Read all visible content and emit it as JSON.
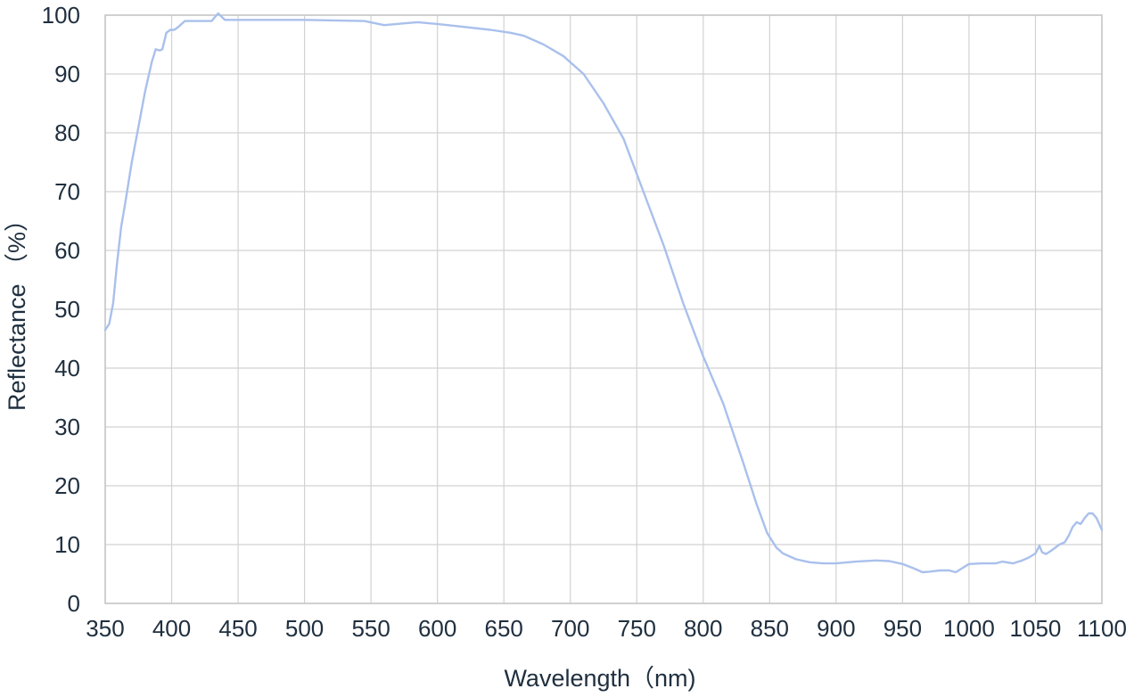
{
  "chart_data": {
    "type": "line",
    "xlabel": "Wavelength（nm)",
    "ylabel": "Reflectance （%）",
    "xlim": [
      350,
      1100
    ],
    "ylim": [
      0,
      100
    ],
    "x_ticks": [
      350,
      400,
      450,
      500,
      550,
      600,
      650,
      700,
      750,
      800,
      850,
      900,
      950,
      1000,
      1050,
      1100
    ],
    "y_ticks": [
      0,
      10,
      20,
      30,
      40,
      50,
      60,
      70,
      80,
      90,
      100
    ],
    "grid": true,
    "series": [
      {
        "color": "#a9c0ec",
        "points": [
          [
            350,
            46.5
          ],
          [
            353,
            47.5
          ],
          [
            356,
            51
          ],
          [
            359,
            58
          ],
          [
            362,
            64
          ],
          [
            365,
            68
          ],
          [
            370,
            75
          ],
          [
            375,
            81
          ],
          [
            380,
            87
          ],
          [
            385,
            92
          ],
          [
            388,
            94.2
          ],
          [
            391,
            94
          ],
          [
            393,
            94.2
          ],
          [
            396,
            97
          ],
          [
            399,
            97.5
          ],
          [
            402,
            97.5
          ],
          [
            405,
            98
          ],
          [
            410,
            99
          ],
          [
            420,
            99
          ],
          [
            430,
            99
          ],
          [
            435,
            100.3
          ],
          [
            440,
            99.2
          ],
          [
            450,
            99.2
          ],
          [
            500,
            99.2
          ],
          [
            545,
            99
          ],
          [
            560,
            98.3
          ],
          [
            575,
            98.6
          ],
          [
            585,
            98.8
          ],
          [
            600,
            98.5
          ],
          [
            620,
            98
          ],
          [
            640,
            97.5
          ],
          [
            655,
            97
          ],
          [
            665,
            96.5
          ],
          [
            680,
            95
          ],
          [
            695,
            93
          ],
          [
            710,
            90
          ],
          [
            725,
            85
          ],
          [
            740,
            79
          ],
          [
            755,
            70
          ],
          [
            770,
            61
          ],
          [
            785,
            51
          ],
          [
            800,
            42
          ],
          [
            815,
            34
          ],
          [
            830,
            24
          ],
          [
            840,
            17
          ],
          [
            848,
            12
          ],
          [
            855,
            9.5
          ],
          [
            860,
            8.5
          ],
          [
            870,
            7.5
          ],
          [
            880,
            7
          ],
          [
            890,
            6.8
          ],
          [
            900,
            6.8
          ],
          [
            915,
            7.1
          ],
          [
            930,
            7.3
          ],
          [
            940,
            7.2
          ],
          [
            950,
            6.7
          ],
          [
            958,
            6
          ],
          [
            965,
            5.3
          ],
          [
            970,
            5.4
          ],
          [
            978,
            5.6
          ],
          [
            985,
            5.6
          ],
          [
            990,
            5.3
          ],
          [
            995,
            6
          ],
          [
            1000,
            6.7
          ],
          [
            1010,
            6.8
          ],
          [
            1020,
            6.8
          ],
          [
            1025,
            7.1
          ],
          [
            1028,
            7
          ],
          [
            1033,
            6.8
          ],
          [
            1040,
            7.3
          ],
          [
            1045,
            7.8
          ],
          [
            1050,
            8.5
          ],
          [
            1053,
            9.8
          ],
          [
            1055,
            8.7
          ],
          [
            1058,
            8.4
          ],
          [
            1062,
            9
          ],
          [
            1068,
            10
          ],
          [
            1072,
            10.4
          ],
          [
            1075,
            11.5
          ],
          [
            1078,
            13
          ],
          [
            1081,
            13.8
          ],
          [
            1084,
            13.5
          ],
          [
            1087,
            14.5
          ],
          [
            1090,
            15.3
          ],
          [
            1093,
            15.3
          ],
          [
            1096,
            14.5
          ],
          [
            1099,
            13
          ],
          [
            1100,
            12.5
          ]
        ]
      }
    ]
  }
}
